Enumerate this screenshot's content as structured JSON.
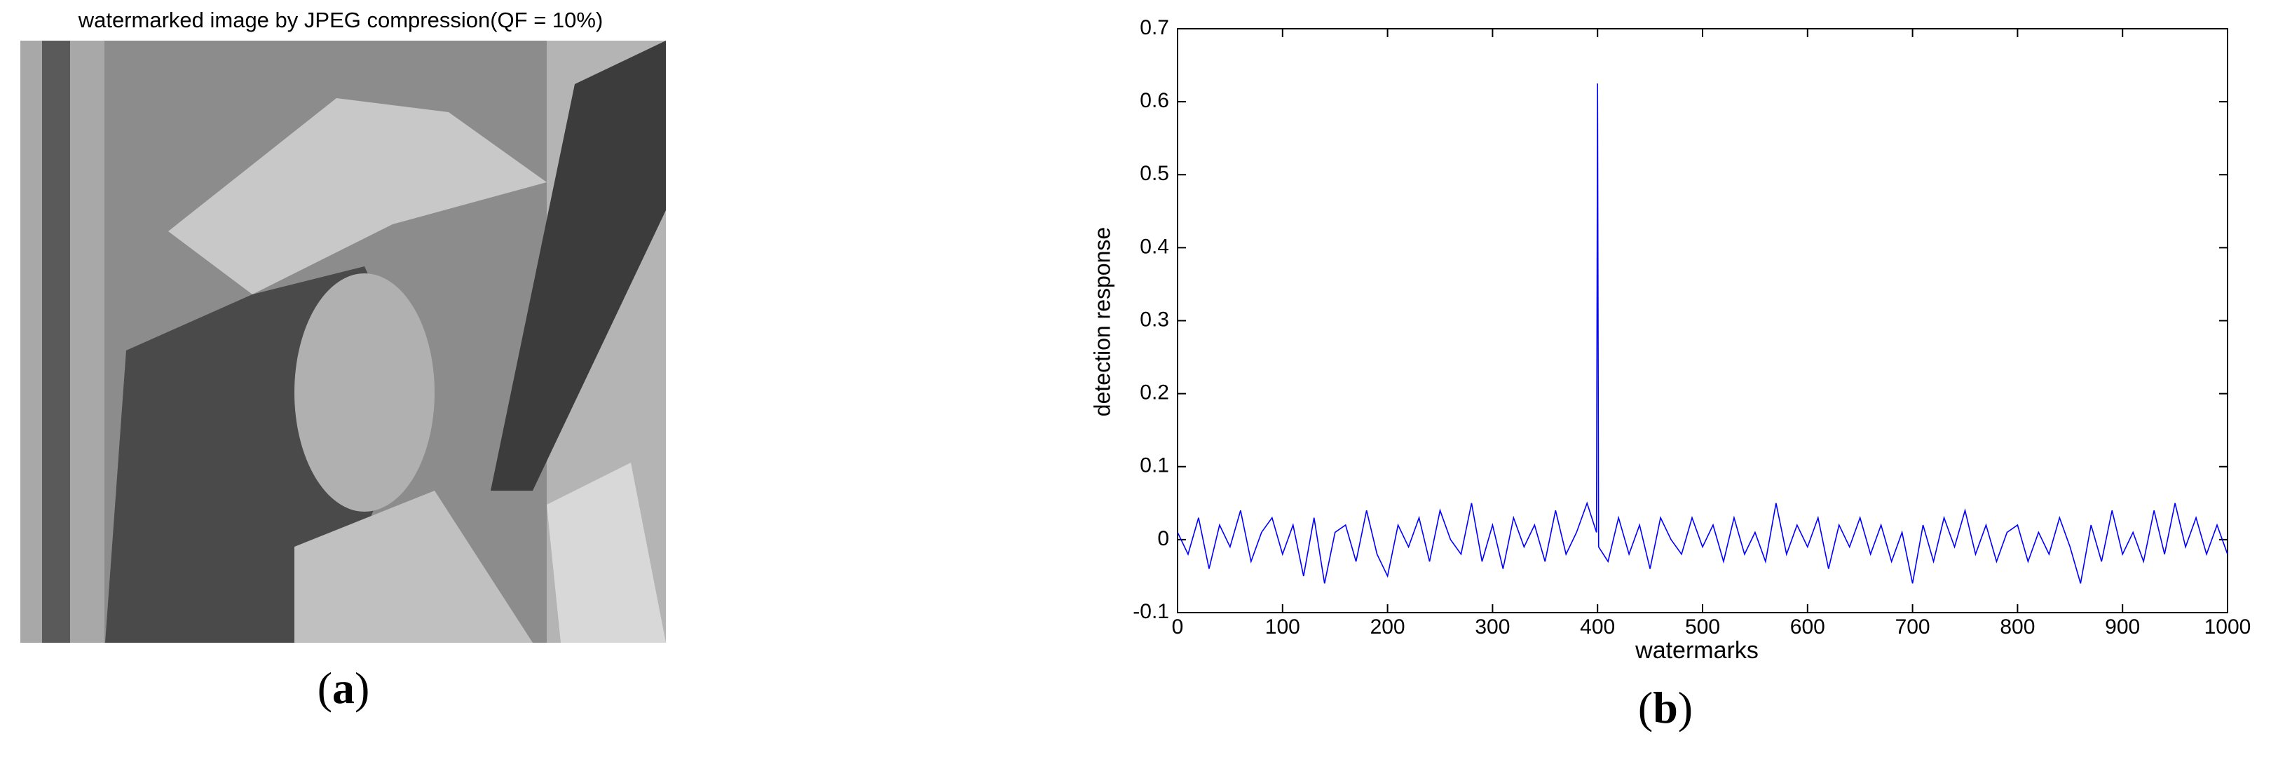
{
  "image_panel": {
    "title": "watermarked image by JPEG compression(QF = 10%)",
    "caption_open": "(",
    "caption_letter": "a",
    "caption_close": ")"
  },
  "chart_caption": {
    "open": "(",
    "letter": "b",
    "close": ")"
  },
  "chart_data": {
    "type": "line",
    "xlabel": "watermarks",
    "ylabel": "detection response",
    "xlim": [
      0,
      1000
    ],
    "ylim": [
      -0.1,
      0.7
    ],
    "xticks": [
      0,
      100,
      200,
      300,
      400,
      500,
      600,
      700,
      800,
      900,
      1000
    ],
    "yticks": [
      -0.1,
      0,
      0.1,
      0.2,
      0.3,
      0.4,
      0.5,
      0.6,
      0.7
    ],
    "grid": false,
    "x": [
      0,
      10,
      20,
      30,
      40,
      50,
      60,
      70,
      80,
      90,
      100,
      110,
      120,
      130,
      140,
      150,
      160,
      170,
      180,
      190,
      200,
      210,
      220,
      230,
      240,
      250,
      260,
      270,
      280,
      290,
      300,
      310,
      320,
      330,
      340,
      350,
      360,
      370,
      380,
      390,
      399,
      400,
      401,
      410,
      420,
      430,
      440,
      450,
      460,
      470,
      480,
      490,
      500,
      510,
      520,
      530,
      540,
      550,
      560,
      570,
      580,
      590,
      600,
      610,
      620,
      630,
      640,
      650,
      660,
      670,
      680,
      690,
      700,
      710,
      720,
      730,
      740,
      750,
      760,
      770,
      780,
      790,
      800,
      810,
      820,
      830,
      840,
      850,
      860,
      870,
      880,
      890,
      900,
      910,
      920,
      930,
      940,
      950,
      960,
      970,
      980,
      990,
      1000
    ],
    "series": [
      {
        "color": "#0000ff",
        "values": [
          0.01,
          -0.02,
          0.03,
          -0.04,
          0.02,
          -0.01,
          0.04,
          -0.03,
          0.01,
          0.03,
          -0.02,
          0.02,
          -0.05,
          0.03,
          -0.06,
          0.01,
          0.02,
          -0.03,
          0.04,
          -0.02,
          -0.05,
          0.02,
          -0.01,
          0.03,
          -0.03,
          0.04,
          0,
          -0.02,
          0.05,
          -0.03,
          0.02,
          -0.04,
          0.03,
          -0.01,
          0.02,
          -0.03,
          0.04,
          -0.02,
          0.01,
          0.05,
          0.01,
          0.625,
          -0.01,
          -0.03,
          0.03,
          -0.02,
          0.02,
          -0.04,
          0.03,
          0,
          -0.02,
          0.03,
          -0.01,
          0.02,
          -0.03,
          0.03,
          -0.02,
          0.01,
          -0.03,
          0.05,
          -0.02,
          0.02,
          -0.01,
          0.03,
          -0.04,
          0.02,
          -0.01,
          0.03,
          -0.02,
          0.02,
          -0.03,
          0.01,
          -0.06,
          0.02,
          -0.03,
          0.03,
          -0.01,
          0.04,
          -0.02,
          0.02,
          -0.03,
          0.01,
          0.02,
          -0.03,
          0.01,
          -0.02,
          0.03,
          -0.01,
          -0.06,
          0.02,
          -0.03,
          0.04,
          -0.02,
          0.01,
          -0.03,
          0.04,
          -0.02,
          0.05,
          -0.01,
          0.03,
          -0.02,
          0.02,
          -0.02
        ]
      }
    ]
  }
}
